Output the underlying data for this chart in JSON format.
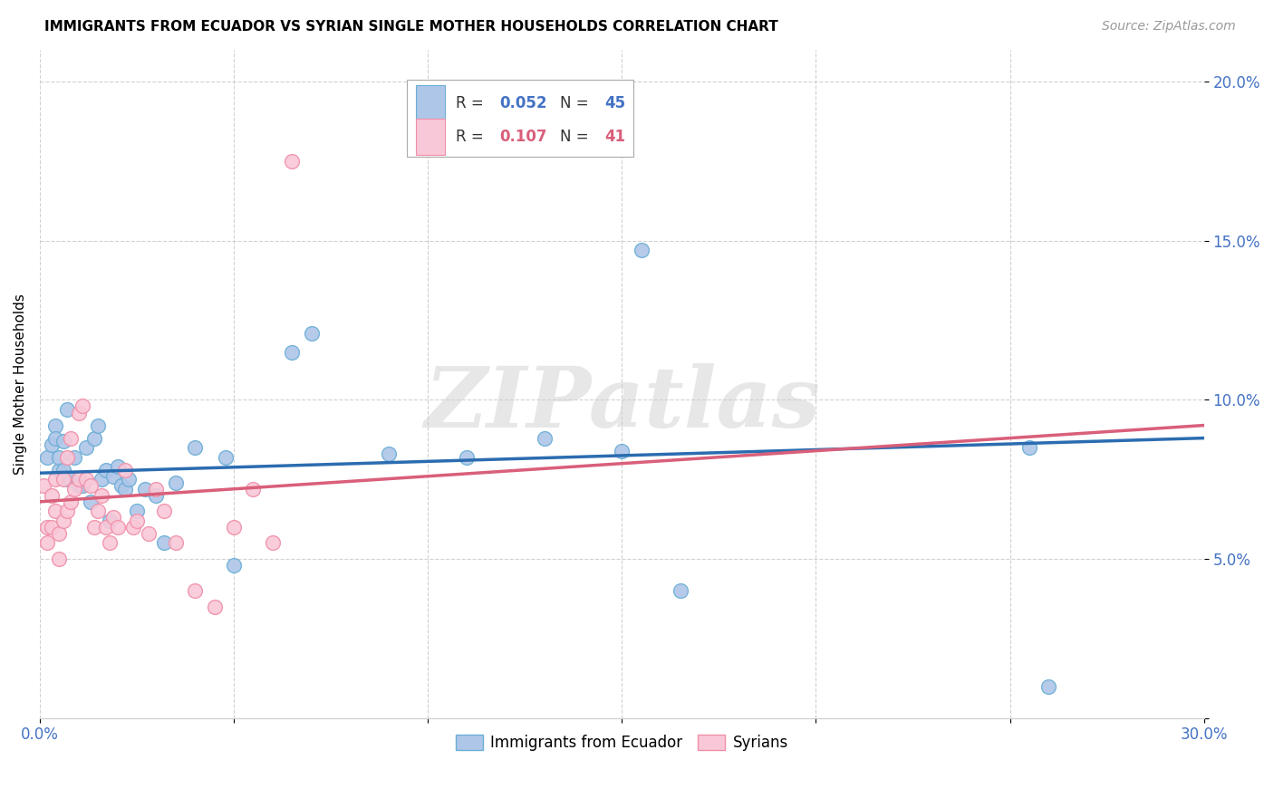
{
  "title": "IMMIGRANTS FROM ECUADOR VS SYRIAN SINGLE MOTHER HOUSEHOLDS CORRELATION CHART",
  "source": "Source: ZipAtlas.com",
  "ylabel": "Single Mother Households",
  "xlim": [
    0.0,
    0.3
  ],
  "ylim": [
    0.0,
    0.21
  ],
  "xticks": [
    0.0,
    0.05,
    0.1,
    0.15,
    0.2,
    0.25,
    0.3
  ],
  "xticklabels": [
    "0.0%",
    "",
    "",
    "",
    "",
    "",
    "30.0%"
  ],
  "yticks": [
    0.0,
    0.05,
    0.1,
    0.15,
    0.2
  ],
  "yticklabels": [
    "",
    "5.0%",
    "10.0%",
    "15.0%",
    "20.0%"
  ],
  "blue_color": "#aec6e8",
  "blue_edge_color": "#6baed6",
  "pink_color": "#f9c8d8",
  "pink_edge_color": "#f08fa8",
  "blue_line_color": "#2b6cb0",
  "pink_line_color": "#d95f7a",
  "watermark": "ZIPatlas",
  "ecuador_x": [
    0.002,
    0.003,
    0.004,
    0.004,
    0.005,
    0.005,
    0.006,
    0.006,
    0.007,
    0.007,
    0.008,
    0.009,
    0.01,
    0.01,
    0.011,
    0.012,
    0.013,
    0.014,
    0.015,
    0.016,
    0.017,
    0.018,
    0.019,
    0.02,
    0.021,
    0.022,
    0.023,
    0.025,
    0.027,
    0.03,
    0.032,
    0.035,
    0.04,
    0.048,
    0.05,
    0.065,
    0.07,
    0.09,
    0.11,
    0.13,
    0.15,
    0.155,
    0.165,
    0.255,
    0.26
  ],
  "ecuador_y": [
    0.082,
    0.086,
    0.092,
    0.088,
    0.078,
    0.082,
    0.087,
    0.078,
    0.097,
    0.075,
    0.075,
    0.082,
    0.074,
    0.073,
    0.073,
    0.085,
    0.068,
    0.088,
    0.092,
    0.075,
    0.078,
    0.062,
    0.076,
    0.079,
    0.073,
    0.072,
    0.075,
    0.065,
    0.072,
    0.07,
    0.055,
    0.074,
    0.085,
    0.082,
    0.048,
    0.115,
    0.121,
    0.083,
    0.082,
    0.088,
    0.084,
    0.147,
    0.04,
    0.085,
    0.01
  ],
  "syrian_x": [
    0.001,
    0.002,
    0.002,
    0.003,
    0.003,
    0.004,
    0.004,
    0.005,
    0.005,
    0.006,
    0.006,
    0.007,
    0.007,
    0.008,
    0.008,
    0.009,
    0.01,
    0.01,
    0.011,
    0.012,
    0.013,
    0.014,
    0.015,
    0.016,
    0.017,
    0.018,
    0.019,
    0.02,
    0.022,
    0.024,
    0.025,
    0.028,
    0.03,
    0.032,
    0.035,
    0.04,
    0.045,
    0.05,
    0.055,
    0.06,
    0.065
  ],
  "syrian_y": [
    0.073,
    0.06,
    0.055,
    0.06,
    0.07,
    0.075,
    0.065,
    0.058,
    0.05,
    0.062,
    0.075,
    0.065,
    0.082,
    0.088,
    0.068,
    0.072,
    0.075,
    0.096,
    0.098,
    0.075,
    0.073,
    0.06,
    0.065,
    0.07,
    0.06,
    0.055,
    0.063,
    0.06,
    0.078,
    0.06,
    0.062,
    0.058,
    0.072,
    0.065,
    0.055,
    0.04,
    0.035,
    0.06,
    0.072,
    0.055,
    0.175
  ],
  "ecuador_trend_x0": 0.0,
  "ecuador_trend_x1": 0.3,
  "ecuador_trend_y0": 0.077,
  "ecuador_trend_y1": 0.088,
  "syrian_trend_x0": 0.0,
  "syrian_trend_x1": 0.3,
  "syrian_trend_y0": 0.068,
  "syrian_trend_y1": 0.092
}
